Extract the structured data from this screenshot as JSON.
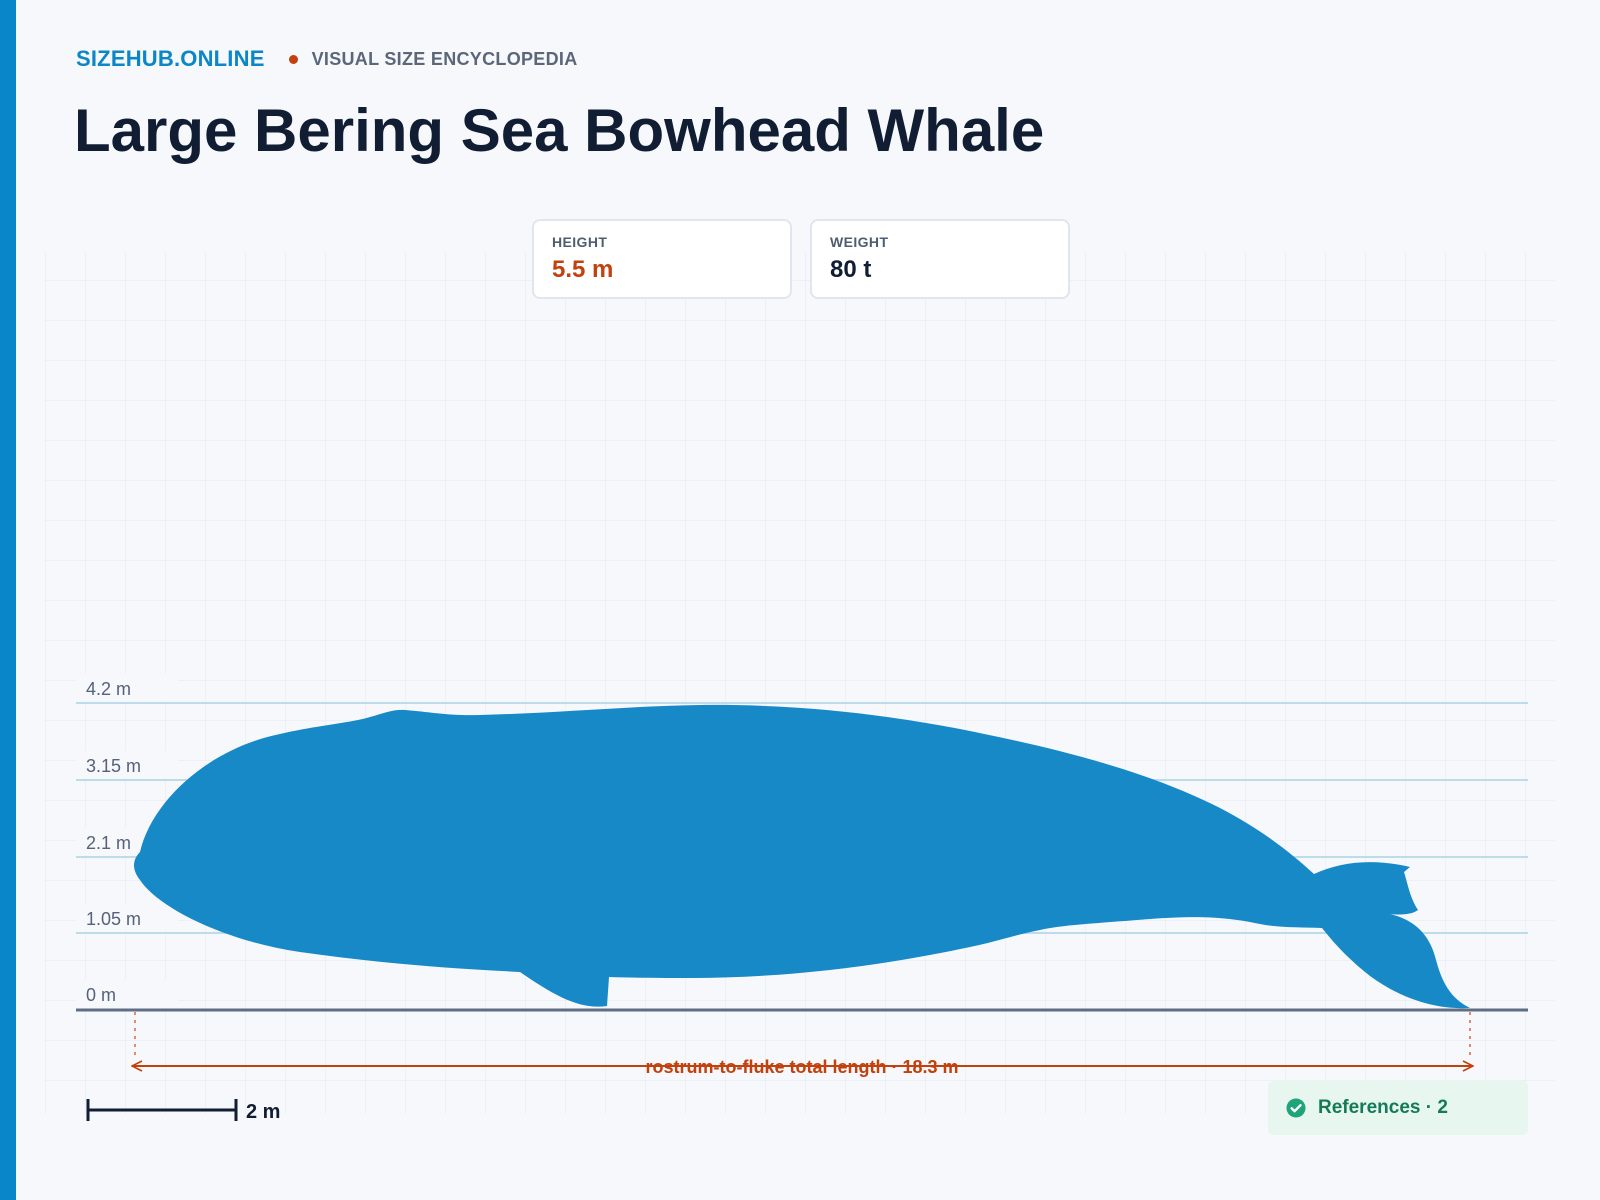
{
  "header": {
    "brand": "SIZEHUB.ONLINE",
    "tagline": "VISUAL SIZE ENCYCLOPEDIA",
    "title": "Large Bering Sea Bowhead Whale"
  },
  "stats": {
    "height": {
      "label": "HEIGHT",
      "value": "5.5 m"
    },
    "weight": {
      "label": "WEIGHT",
      "value": "80 t"
    }
  },
  "diagram": {
    "height_ticks": [
      "4.2 m",
      "3.15 m",
      "2.1 m",
      "1.05 m",
      "0 m"
    ],
    "length_label": "rostrum-to-fluke total length · 18.3 m",
    "scale_label": "2 m"
  },
  "references": {
    "label": "References · 2",
    "icon": "check-circle-icon"
  },
  "colors": {
    "accent": "#0886c9",
    "silhouette": "#1789c7",
    "measure": "#c2410c",
    "success": "#137b59"
  }
}
